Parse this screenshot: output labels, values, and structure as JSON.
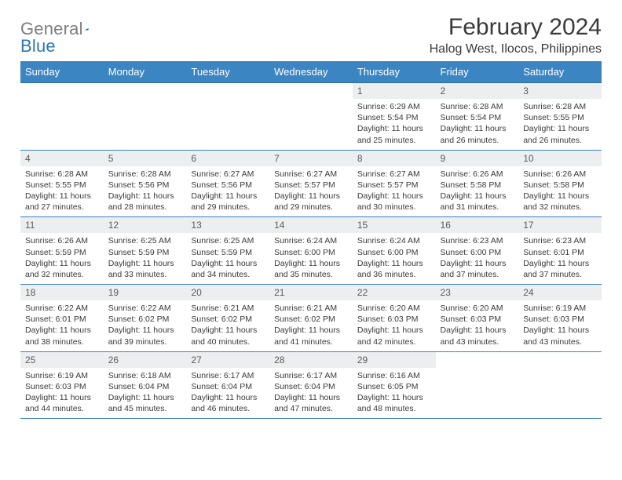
{
  "logo": {
    "word1": "General",
    "word2": "Blue"
  },
  "title": "February 2024",
  "location": "Halog West, Ilocos, Philippines",
  "colors": {
    "header_bg": "#3c85c3",
    "header_text": "#ffffff",
    "daynum_bg": "#eceeef",
    "text": "#3a3a3a",
    "row_border": "#3c85c3"
  },
  "weekdays": [
    "Sunday",
    "Monday",
    "Tuesday",
    "Wednesday",
    "Thursday",
    "Friday",
    "Saturday"
  ],
  "weeks": [
    [
      null,
      null,
      null,
      null,
      {
        "day": "1",
        "sunrise": "6:29 AM",
        "sunset": "5:54 PM",
        "daylight": "11 hours and 25 minutes."
      },
      {
        "day": "2",
        "sunrise": "6:28 AM",
        "sunset": "5:54 PM",
        "daylight": "11 hours and 26 minutes."
      },
      {
        "day": "3",
        "sunrise": "6:28 AM",
        "sunset": "5:55 PM",
        "daylight": "11 hours and 26 minutes."
      }
    ],
    [
      {
        "day": "4",
        "sunrise": "6:28 AM",
        "sunset": "5:55 PM",
        "daylight": "11 hours and 27 minutes."
      },
      {
        "day": "5",
        "sunrise": "6:28 AM",
        "sunset": "5:56 PM",
        "daylight": "11 hours and 28 minutes."
      },
      {
        "day": "6",
        "sunrise": "6:27 AM",
        "sunset": "5:56 PM",
        "daylight": "11 hours and 29 minutes."
      },
      {
        "day": "7",
        "sunrise": "6:27 AM",
        "sunset": "5:57 PM",
        "daylight": "11 hours and 29 minutes."
      },
      {
        "day": "8",
        "sunrise": "6:27 AM",
        "sunset": "5:57 PM",
        "daylight": "11 hours and 30 minutes."
      },
      {
        "day": "9",
        "sunrise": "6:26 AM",
        "sunset": "5:58 PM",
        "daylight": "11 hours and 31 minutes."
      },
      {
        "day": "10",
        "sunrise": "6:26 AM",
        "sunset": "5:58 PM",
        "daylight": "11 hours and 32 minutes."
      }
    ],
    [
      {
        "day": "11",
        "sunrise": "6:26 AM",
        "sunset": "5:59 PM",
        "daylight": "11 hours and 32 minutes."
      },
      {
        "day": "12",
        "sunrise": "6:25 AM",
        "sunset": "5:59 PM",
        "daylight": "11 hours and 33 minutes."
      },
      {
        "day": "13",
        "sunrise": "6:25 AM",
        "sunset": "5:59 PM",
        "daylight": "11 hours and 34 minutes."
      },
      {
        "day": "14",
        "sunrise": "6:24 AM",
        "sunset": "6:00 PM",
        "daylight": "11 hours and 35 minutes."
      },
      {
        "day": "15",
        "sunrise": "6:24 AM",
        "sunset": "6:00 PM",
        "daylight": "11 hours and 36 minutes."
      },
      {
        "day": "16",
        "sunrise": "6:23 AM",
        "sunset": "6:00 PM",
        "daylight": "11 hours and 37 minutes."
      },
      {
        "day": "17",
        "sunrise": "6:23 AM",
        "sunset": "6:01 PM",
        "daylight": "11 hours and 37 minutes."
      }
    ],
    [
      {
        "day": "18",
        "sunrise": "6:22 AM",
        "sunset": "6:01 PM",
        "daylight": "11 hours and 38 minutes."
      },
      {
        "day": "19",
        "sunrise": "6:22 AM",
        "sunset": "6:02 PM",
        "daylight": "11 hours and 39 minutes."
      },
      {
        "day": "20",
        "sunrise": "6:21 AM",
        "sunset": "6:02 PM",
        "daylight": "11 hours and 40 minutes."
      },
      {
        "day": "21",
        "sunrise": "6:21 AM",
        "sunset": "6:02 PM",
        "daylight": "11 hours and 41 minutes."
      },
      {
        "day": "22",
        "sunrise": "6:20 AM",
        "sunset": "6:03 PM",
        "daylight": "11 hours and 42 minutes."
      },
      {
        "day": "23",
        "sunrise": "6:20 AM",
        "sunset": "6:03 PM",
        "daylight": "11 hours and 43 minutes."
      },
      {
        "day": "24",
        "sunrise": "6:19 AM",
        "sunset": "6:03 PM",
        "daylight": "11 hours and 43 minutes."
      }
    ],
    [
      {
        "day": "25",
        "sunrise": "6:19 AM",
        "sunset": "6:03 PM",
        "daylight": "11 hours and 44 minutes."
      },
      {
        "day": "26",
        "sunrise": "6:18 AM",
        "sunset": "6:04 PM",
        "daylight": "11 hours and 45 minutes."
      },
      {
        "day": "27",
        "sunrise": "6:17 AM",
        "sunset": "6:04 PM",
        "daylight": "11 hours and 46 minutes."
      },
      {
        "day": "28",
        "sunrise": "6:17 AM",
        "sunset": "6:04 PM",
        "daylight": "11 hours and 47 minutes."
      },
      {
        "day": "29",
        "sunrise": "6:16 AM",
        "sunset": "6:05 PM",
        "daylight": "11 hours and 48 minutes."
      },
      null,
      null
    ]
  ],
  "labels": {
    "sunrise_prefix": "Sunrise: ",
    "sunset_prefix": "Sunset: ",
    "daylight_prefix": "Daylight: "
  }
}
